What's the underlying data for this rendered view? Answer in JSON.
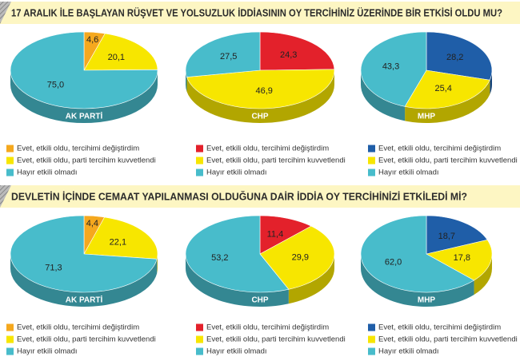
{
  "headings": [
    "17 ARALIK İLE BAŞLAYAN RÜŞVET VE YOLSUZLUK İDDİASININ OY TERCİHİNİZ ÜZERİNDE BİR ETKİSİ OLDU MU?",
    "DEVLETİN İÇİNDE CEMAAT YAPILANMASI OLDUĞUNA DAİR İDDİA OY TERCİHİNİZİ ETKİLEDİ Mİ?"
  ],
  "chart_data": [
    {
      "type": "pie",
      "label": "AK PARTİ",
      "categories": [
        "Evet, etkili oldu, tercihimi değiştirdim",
        "Evet, etkili oldu, parti tercihim kuvvetlendi",
        "Hayır etkili olmadı"
      ],
      "values": [
        4.6,
        20.1,
        75.0
      ],
      "value_labels": [
        "4,6",
        "20,1",
        "75,0"
      ],
      "colors": [
        "#f5a81e",
        "#f7e600",
        "#48bccb"
      ]
    },
    {
      "type": "pie",
      "label": "CHP",
      "categories": [
        "Evet, etkili oldu, tercihimi değiştirdim",
        "Evet, etkili oldu, parti tercihim kuvvetlendi",
        "Hayır etkili olmadı"
      ],
      "values": [
        24.3,
        46.9,
        27.5
      ],
      "value_labels": [
        "24,3",
        "46,9",
        "27,5"
      ],
      "colors": [
        "#e3212b",
        "#f7e600",
        "#48bccb"
      ]
    },
    {
      "type": "pie",
      "label": "MHP",
      "categories": [
        "Evet, etkili oldu, tercihimi değiştirdim",
        "Evet, etkili oldu, parti tercihim kuvvetlendi",
        "Hayır etkili olmadı"
      ],
      "values": [
        28.2,
        25.4,
        43.3
      ],
      "value_labels": [
        "28,2",
        "25,4",
        "43,3"
      ],
      "colors": [
        "#1f5ea8",
        "#f7e600",
        "#48bccb"
      ]
    },
    {
      "type": "pie",
      "label": "AK PARTİ",
      "categories": [
        "Evet, etkili oldu, tercihimi değiştirdim",
        "Evet, etkili oldu, parti tercihim kuvvetlendi",
        "Hayır etkili olmadı"
      ],
      "values": [
        4.4,
        22.1,
        71.3
      ],
      "value_labels": [
        "4,4",
        "22,1",
        "71,3"
      ],
      "colors": [
        "#f5a81e",
        "#f7e600",
        "#48bccb"
      ]
    },
    {
      "type": "pie",
      "label": "CHP",
      "categories": [
        "Evet, etkili oldu, tercihimi değiştirdim",
        "Evet, etkili oldu, parti tercihim kuvvetlendi",
        "Hayır etkili olmadı"
      ],
      "values": [
        11.4,
        29.9,
        53.2
      ],
      "value_labels": [
        "11,4",
        "29,9",
        "53,2"
      ],
      "colors": [
        "#e3212b",
        "#f7e600",
        "#48bccb"
      ]
    },
    {
      "type": "pie",
      "label": "MHP",
      "categories": [
        "Evet, etkili oldu, tercihimi değiştirdim",
        "Evet, etkili oldu, parti tercihim kuvvetlendi",
        "Hayır etkili olmadı"
      ],
      "values": [
        18.7,
        17.8,
        62.0
      ],
      "value_labels": [
        "18,7",
        "17,8",
        "62,0"
      ],
      "colors": [
        "#1f5ea8",
        "#f7e600",
        "#48bccb"
      ]
    }
  ]
}
